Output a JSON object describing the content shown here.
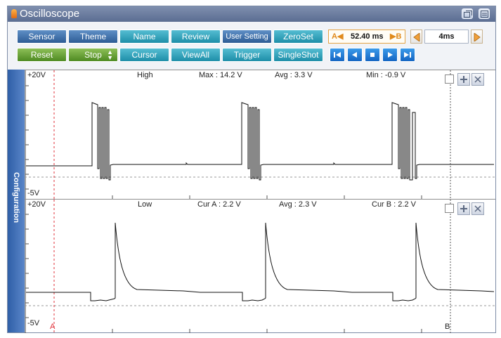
{
  "window": {
    "title": "Oscilloscope"
  },
  "toolbar": {
    "row1": [
      "Sensor",
      "Theme",
      "Name",
      "Review",
      "User Setting",
      "ZeroSet"
    ],
    "row2": [
      "Reset",
      "Stop",
      "Cursor",
      "ViewAll",
      "Trigger",
      "SingleShot"
    ],
    "cursor_a_label": "A◀",
    "cursor_delta": "52.40 ms",
    "cursor_b_label": "▶B",
    "time_div": "4ms"
  },
  "sidebar": {
    "label": "Configuration"
  },
  "channels": [
    {
      "ymax": "+20V",
      "ymin": "-5V",
      "mode": "High",
      "stat1": "Max : 14.2 V",
      "stat2": "Avg : 3.3 V",
      "stat3": "Min : -0.9 V"
    },
    {
      "ymax": "+20V",
      "ymin": "-5V",
      "mode": "Low",
      "stat1": "Cur A : 2.2 V",
      "stat2": "Avg : 2.3 V",
      "stat3": "Cur B : 2.2 V"
    }
  ],
  "cursors": {
    "a_marker": "A",
    "b_marker": "B"
  },
  "colors": {
    "cursor_a": "#e0323a",
    "cursor_b": "#555555",
    "trace": "#111111"
  }
}
